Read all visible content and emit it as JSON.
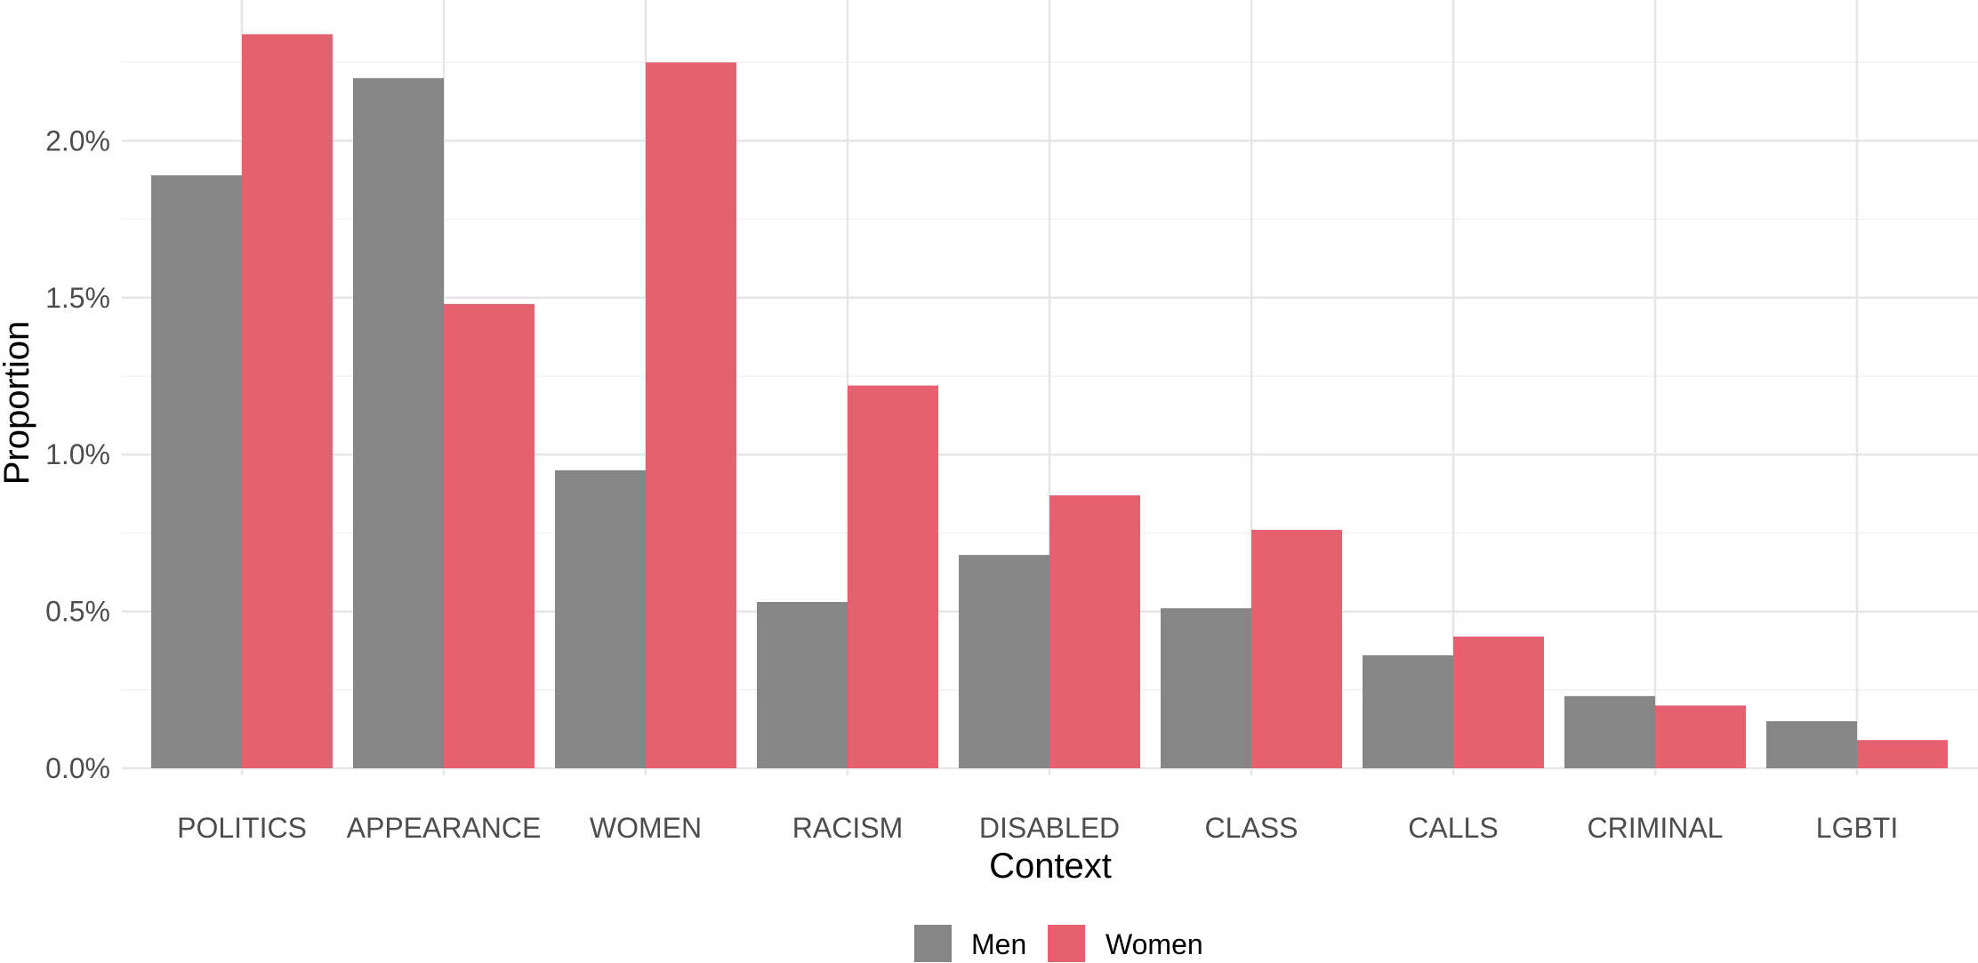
{
  "chart_data": {
    "type": "bar",
    "xlabel": "Context",
    "ylabel": "Proportion",
    "categories": [
      "POLITICS",
      "APPEARANCE",
      "WOMEN",
      "RACISM",
      "DISABLED",
      "CLASS",
      "CALLS",
      "CRIMINAL",
      "LGBTI"
    ],
    "series": [
      {
        "name": "Men",
        "color": "#878687",
        "values": [
          1.89,
          2.2,
          0.95,
          0.53,
          0.68,
          0.51,
          0.36,
          0.23,
          0.15
        ]
      },
      {
        "name": "Women",
        "color": "#e5616f",
        "values": [
          2.34,
          1.48,
          2.25,
          1.22,
          0.87,
          0.76,
          0.42,
          0.2,
          0.09
        ]
      }
    ],
    "y_ticks": [
      "0.0%",
      "0.5%",
      "1.0%",
      "1.5%",
      "2.0%"
    ],
    "y_tick_values": [
      0,
      0.5,
      1.0,
      1.5,
      2.0
    ],
    "ylim": [
      0,
      2.5
    ],
    "grid": true,
    "legend_position": "bottom"
  }
}
